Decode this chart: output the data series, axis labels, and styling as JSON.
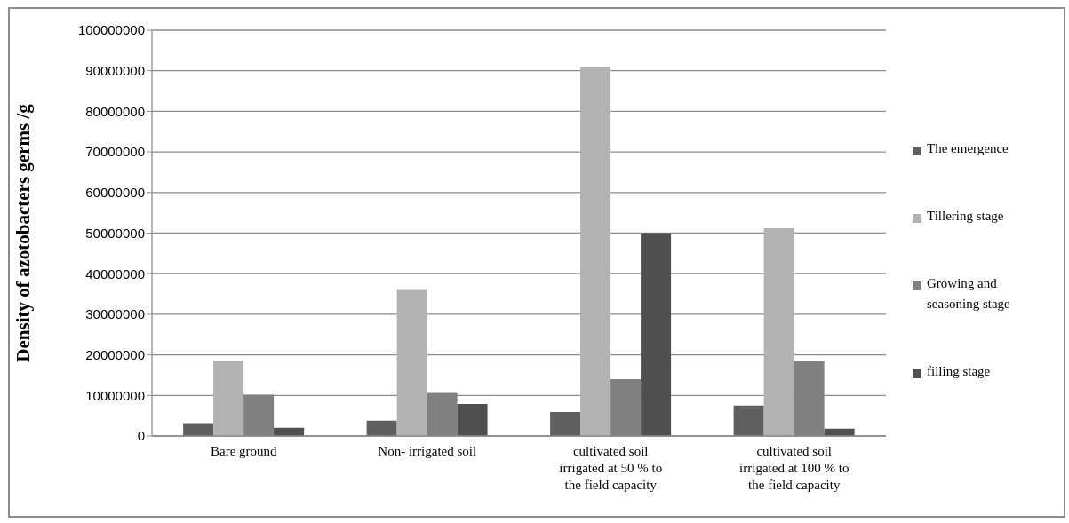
{
  "chart_data": {
    "type": "bar",
    "ylabel": "Density of azotobacters germs /g",
    "categories": [
      "Bare ground",
      "Non- irrigated soil",
      "cultivated soil irrigated at 50 % to the field capacity",
      "cultivated soil irrigated at 100 % to the field capacity"
    ],
    "series": [
      {
        "name": "The emergence",
        "color": "#5f5f5f",
        "values": [
          3200000,
          3800000,
          5900000,
          7500000
        ]
      },
      {
        "name": "Tillering stage",
        "color": "#b2b2b2",
        "values": [
          18500000,
          36000000,
          91000000,
          51200000
        ]
      },
      {
        "name": "Growing and seasoning stage",
        "color": "#808080",
        "values": [
          10200000,
          10600000,
          14000000,
          18400000
        ]
      },
      {
        "name": "filling stage",
        "color": "#4f4f4f",
        "values": [
          2000000,
          7900000,
          50000000,
          1800000
        ]
      }
    ],
    "ylim": [
      0,
      100000000
    ],
    "yticks": [
      0,
      10000000,
      20000000,
      30000000,
      40000000,
      50000000,
      60000000,
      70000000,
      80000000,
      90000000,
      100000000
    ],
    "grid": "y",
    "legend": "right"
  }
}
